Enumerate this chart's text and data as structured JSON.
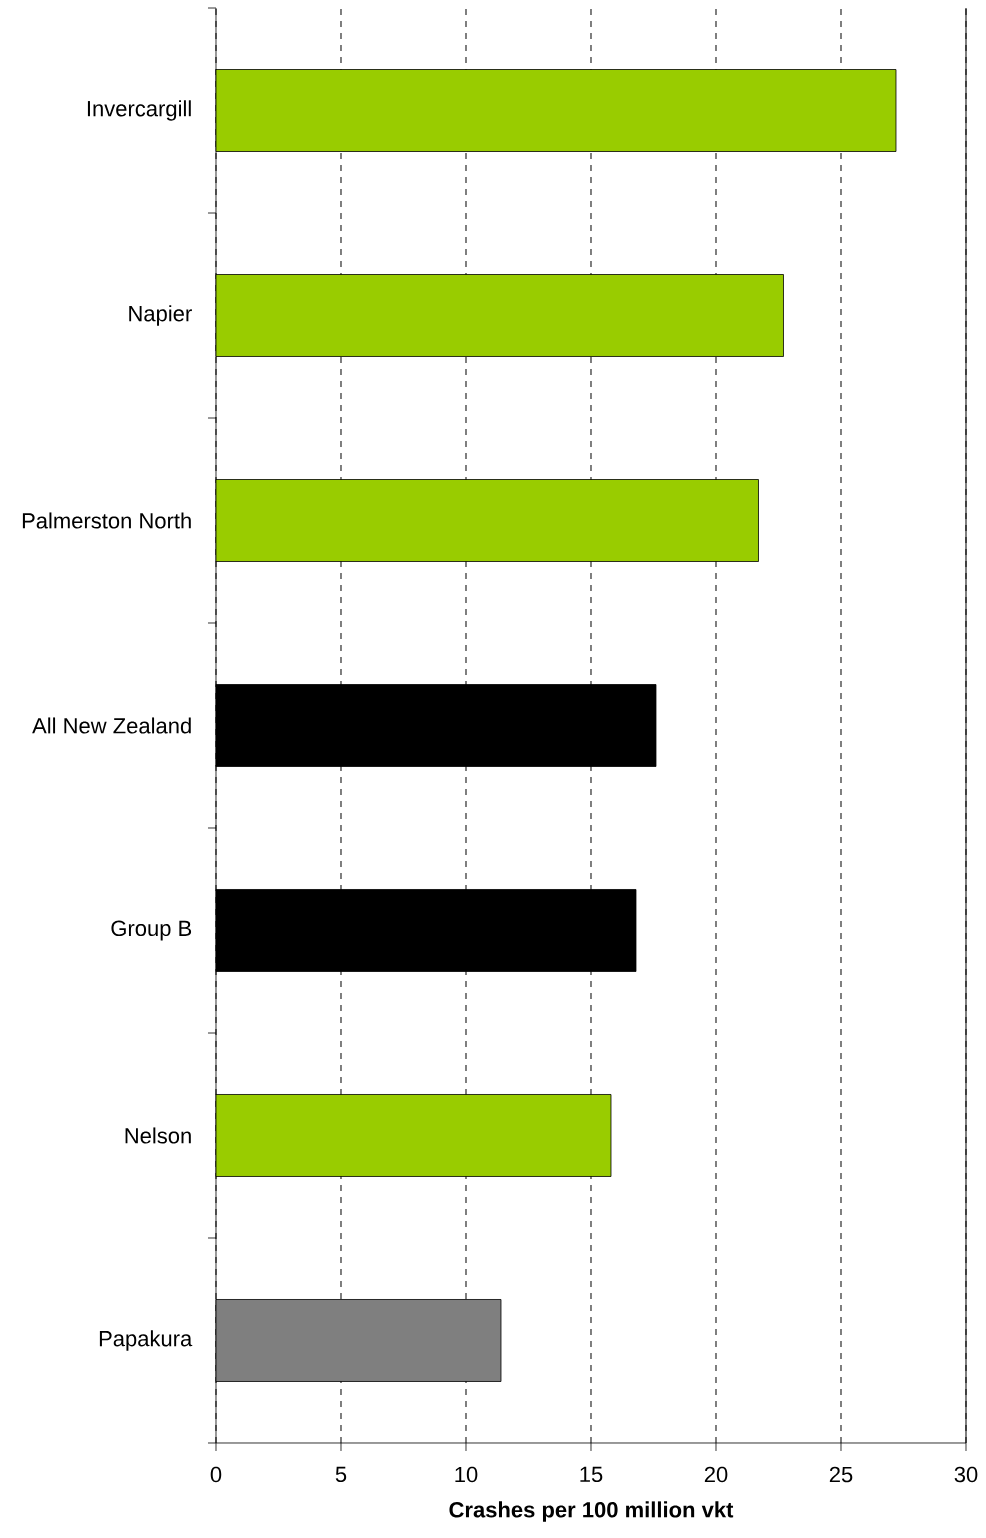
{
  "chart_data": {
    "type": "bar",
    "orientation": "horizontal",
    "xlabel": "Crashes per 100 million vkt",
    "categories": [
      "Invercargill",
      "Napier",
      "Palmerston North",
      "All New Zealand",
      "Group B",
      "Nelson",
      "Papakura"
    ],
    "values": [
      27.2,
      22.7,
      21.7,
      17.6,
      16.8,
      15.8,
      11.4
    ],
    "colors": [
      "#99cc00",
      "#99cc00",
      "#99cc00",
      "#000000",
      "#000000",
      "#99cc00",
      "#7f7f7f"
    ],
    "xlim": [
      0,
      30
    ],
    "xticks": [
      0,
      5,
      10,
      15,
      20,
      25,
      30
    ],
    "grid": "x"
  }
}
